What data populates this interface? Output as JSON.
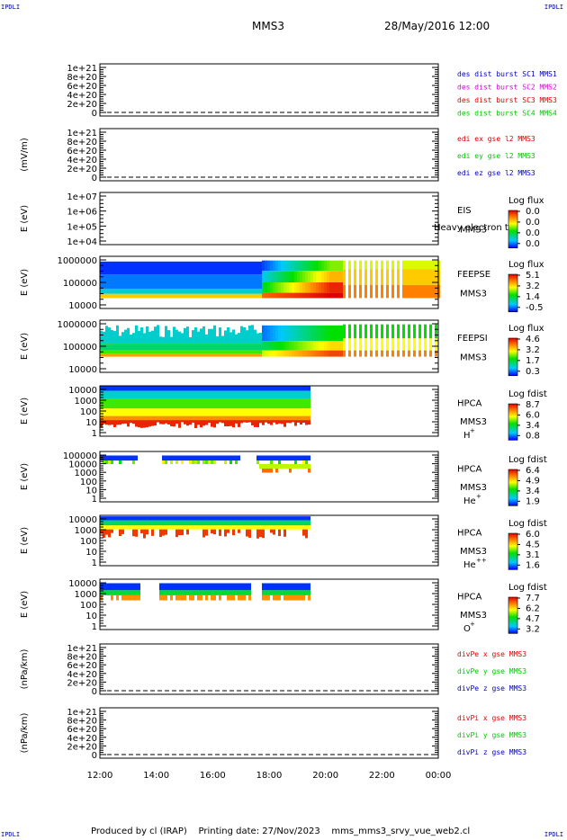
{
  "corner_label": "IPDLI",
  "header": {
    "spacecraft": "MMS3",
    "datetime": "28/May/2016 12:00"
  },
  "footer": {
    "text": "Produced by cl (IRAP)    Printing date: 27/Nov/2023    mms_mms3_srvy_vue_web2.cl"
  },
  "colors": {
    "red": "#e00000",
    "magenta": "#e000e0",
    "green": "#00c800",
    "blue": "#0000c8"
  },
  "chart_data": {
    "type": "heatmap",
    "x_ticks": [
      "12:00",
      "14:00",
      "16:00",
      "18:00",
      "20:00",
      "22:00",
      "00:00"
    ],
    "x_range_hours": [
      12,
      24
    ],
    "panels": [
      {
        "kind": "line",
        "ylabel": "",
        "yticks": [
          "1e+21",
          "8e+20",
          "6e+20",
          "4e+20",
          "2e+20",
          "0"
        ],
        "legend": [
          {
            "text": "des dist burst SC1 MMS1",
            "color": "#0000c8"
          },
          {
            "text": "des dist burst SC2 MMS2",
            "color": "#e000e0"
          },
          {
            "text": "des dist burst SC3 MMS3",
            "color": "#e00000"
          },
          {
            "text": "des dist burst SC4 MMS4",
            "color": "#00c800"
          }
        ]
      },
      {
        "kind": "line",
        "ylabel": "(mV/m)",
        "yticks": [
          "1e+21",
          "8e+20",
          "6e+20",
          "4e+20",
          "2e+20",
          "0"
        ],
        "legend": [
          {
            "text": "edi ex gse l2 MMS3",
            "color": "#e00000"
          },
          {
            "text": "edi ey gse l2 MMS3",
            "color": "#00c800"
          },
          {
            "text": "edi ez gse l2 MMS3",
            "color": "#0000c8"
          }
        ]
      },
      {
        "kind": "spec",
        "ylabel": "E (eV)",
        "yticks": [
          "1e+07",
          "1e+06",
          "1e+05",
          "1e+04"
        ],
        "labels": [
          "EIS",
          "MMS3"
        ],
        "overlay": "Heavy electron tof",
        "cbar_title": "Log flux",
        "cbar_ticks": [
          "0.0",
          "0.0",
          "0.0",
          "0.0"
        ],
        "data_end_hour": 12,
        "pattern": "none"
      },
      {
        "kind": "spec",
        "ylabel": "E (eV)",
        "yticks": [
          "1000000",
          "100000",
          "10000"
        ],
        "labels": [
          "FEEPSE",
          "MMS3"
        ],
        "cbar_title": "Log flux",
        "cbar_ticks": [
          "5.1",
          "3.2",
          "1.4",
          "-0.5"
        ],
        "data_end_hour": 24,
        "pattern": "feeps_e"
      },
      {
        "kind": "spec",
        "ylabel": "E (eV)",
        "yticks": [
          "1000000",
          "100000",
          "10000"
        ],
        "labels": [
          "FEEPSI",
          "MMS3"
        ],
        "cbar_title": "Log flux",
        "cbar_ticks": [
          "4.6",
          "3.2",
          "1.7",
          "0.3"
        ],
        "data_end_hour": 24,
        "pattern": "feeps_i"
      },
      {
        "kind": "spec",
        "ylabel": "E (eV)",
        "yticks": [
          "10000",
          "1000",
          "100",
          "10",
          "1"
        ],
        "labels": [
          "HPCA",
          "MMS3"
        ],
        "species": "H",
        "species_sup": "+",
        "cbar_title": "Log fdist",
        "cbar_ticks": [
          "8.7",
          "6.0",
          "3.4",
          "0.8"
        ],
        "data_end_hour": 19.4,
        "pattern": "hpca_h"
      },
      {
        "kind": "spec",
        "ylabel": "E (eV)",
        "yticks": [
          "100000",
          "10000",
          "1000",
          "100",
          "10",
          "1"
        ],
        "labels": [
          "HPCA",
          "MMS3"
        ],
        "species": "He",
        "species_sup": "+",
        "cbar_title": "Log fdist",
        "cbar_ticks": [
          "6.4",
          "4.9",
          "3.4",
          "1.9"
        ],
        "data_end_hour": 19.4,
        "pattern": "hpca_he"
      },
      {
        "kind": "spec",
        "ylabel": "E (eV)",
        "yticks": [
          "10000",
          "1000",
          "100",
          "10",
          "1"
        ],
        "labels": [
          "HPCA",
          "MMS3"
        ],
        "species": "He",
        "species_sup": "++",
        "cbar_title": "Log fdist",
        "cbar_ticks": [
          "6.0",
          "4.5",
          "3.1",
          "1.6"
        ],
        "data_end_hour": 19.4,
        "pattern": "hpca_he2"
      },
      {
        "kind": "spec",
        "ylabel": "E (eV)",
        "yticks": [
          "10000",
          "1000",
          "100",
          "10",
          "1"
        ],
        "labels": [
          "HPCA",
          "MMS3"
        ],
        "species": "O",
        "species_sup": "+",
        "cbar_title": "Log fdist",
        "cbar_ticks": [
          "7.7",
          "6.2",
          "4.7",
          "3.2"
        ],
        "data_end_hour": 19.4,
        "pattern": "hpca_o"
      },
      {
        "kind": "line",
        "ylabel": "(nPa/km)",
        "yticks": [
          "1e+21",
          "8e+20",
          "6e+20",
          "4e+20",
          "2e+20",
          "0"
        ],
        "legend": [
          {
            "text": "divPe x gse MMS3",
            "color": "#e00000"
          },
          {
            "text": "divPe y gse MMS3",
            "color": "#00c800"
          },
          {
            "text": "divPe z gse MMS3",
            "color": "#0000c8"
          }
        ]
      },
      {
        "kind": "line",
        "ylabel": "(nPa/km)",
        "yticks": [
          "1e+21",
          "8e+20",
          "6e+20",
          "4e+20",
          "2e+20",
          "0"
        ],
        "legend": [
          {
            "text": "divPi x gse MMS3",
            "color": "#e00000"
          },
          {
            "text": "divPi y gse MMS3",
            "color": "#00c800"
          },
          {
            "text": "divPi z gse MMS3",
            "color": "#0000c8"
          }
        ]
      }
    ]
  }
}
